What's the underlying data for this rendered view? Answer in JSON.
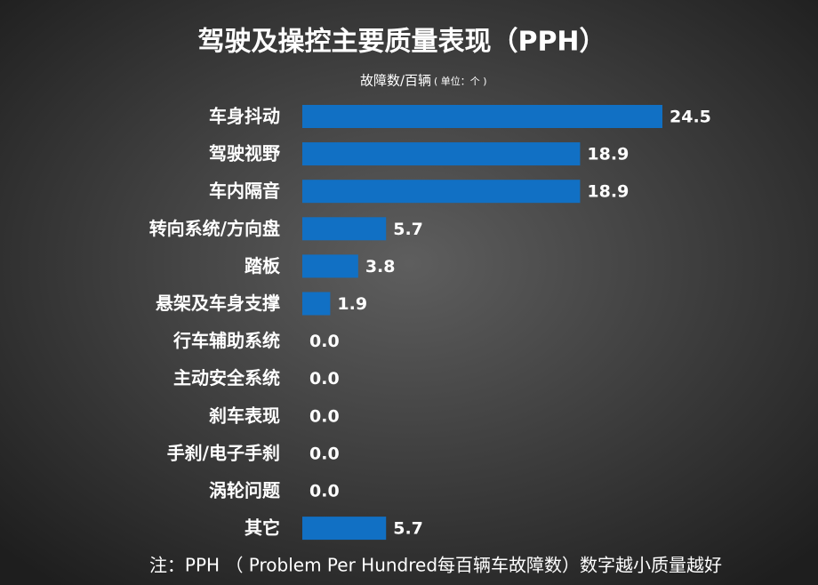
{
  "chart_data": {
    "type": "bar",
    "orientation": "horizontal",
    "title": "驾驶及操控主要质量表现（PPH）",
    "subtitle": "故障数/百辆",
    "unit_note": "( 单位：个 )",
    "categories": [
      "车身抖动",
      "驾驶视野",
      "车内隔音",
      "转向系统/方向盘",
      "踏板",
      "悬架及车身支撑",
      "行车辅助系统",
      "主动安全系统",
      "刹车表现",
      "手刹/电子手刹",
      "涡轮问题",
      "其它"
    ],
    "values": [
      24.5,
      18.9,
      18.9,
      5.7,
      3.8,
      1.9,
      0,
      0,
      0,
      0,
      0,
      5.7
    ],
    "value_labels": [
      "24.5",
      "18.9",
      "18.9",
      "5.7",
      "3.8",
      "1.9",
      "0.0",
      "0.0",
      "0.0",
      "0.0",
      "0.0",
      "5.7"
    ],
    "color": "#1170c4",
    "footnote": "注：PPH （ Problem Per Hundred每百辆车故障数）数字越小质量越好"
  }
}
